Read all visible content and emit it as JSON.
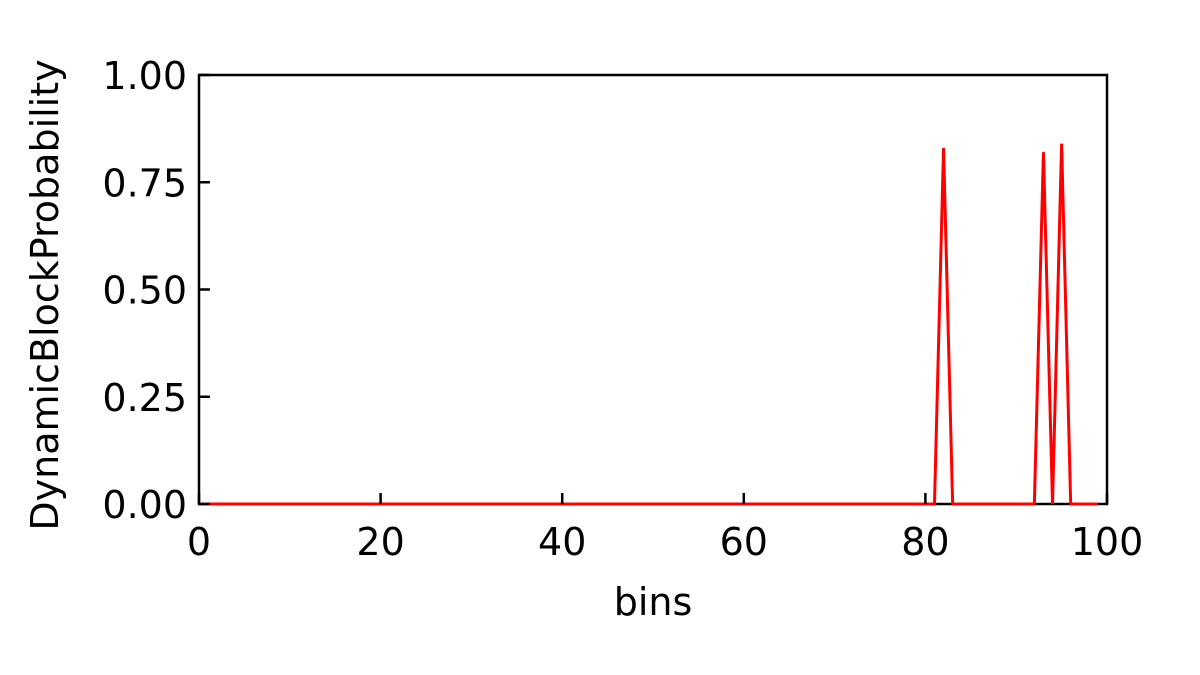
{
  "chart_data": {
    "type": "line",
    "title": "",
    "xlabel": "bins",
    "ylabel": "DynamicBlockProbability",
    "xlim": [
      0,
      100
    ],
    "ylim": [
      0,
      1.0
    ],
    "xticks": [
      0,
      20,
      40,
      60,
      80,
      100
    ],
    "xtick_labels": [
      "0",
      "20",
      "40",
      "60",
      "80",
      "100"
    ],
    "yticks": [
      0,
      0.25,
      0.5,
      0.75,
      1.0
    ],
    "ytick_labels": [
      "0.00",
      "0.25",
      "0.50",
      "0.75",
      "1.00"
    ],
    "grid": false,
    "legend": "none",
    "series": [
      {
        "color": "#ff0000",
        "x": [
          0,
          1,
          2,
          3,
          4,
          5,
          6,
          7,
          8,
          9,
          10,
          11,
          12,
          13,
          14,
          15,
          16,
          17,
          18,
          19,
          20,
          21,
          22,
          23,
          24,
          25,
          26,
          27,
          28,
          29,
          30,
          31,
          32,
          33,
          34,
          35,
          36,
          37,
          38,
          39,
          40,
          41,
          42,
          43,
          44,
          45,
          46,
          47,
          48,
          49,
          50,
          51,
          52,
          53,
          54,
          55,
          56,
          57,
          58,
          59,
          60,
          61,
          62,
          63,
          64,
          65,
          66,
          67,
          68,
          69,
          70,
          71,
          72,
          73,
          74,
          75,
          76,
          77,
          78,
          79,
          80,
          81,
          82,
          83,
          84,
          85,
          86,
          87,
          88,
          89,
          90,
          91,
          92,
          93,
          94,
          95,
          96,
          97,
          98,
          99
        ],
        "y": [
          0,
          0,
          0,
          0,
          0,
          0,
          0,
          0,
          0,
          0,
          0,
          0,
          0,
          0,
          0,
          0,
          0,
          0,
          0,
          0,
          0,
          0,
          0,
          0,
          0,
          0,
          0,
          0,
          0,
          0,
          0,
          0,
          0,
          0,
          0,
          0,
          0,
          0,
          0,
          0,
          0,
          0,
          0,
          0,
          0,
          0,
          0,
          0,
          0,
          0,
          0,
          0,
          0,
          0,
          0,
          0,
          0,
          0,
          0,
          0,
          0,
          0,
          0,
          0,
          0,
          0,
          0,
          0,
          0,
          0,
          0,
          0,
          0,
          0,
          0,
          0,
          0,
          0,
          0,
          0,
          0,
          0,
          0.83,
          0,
          0,
          0,
          0,
          0,
          0,
          0,
          0,
          0,
          0,
          0.82,
          0,
          0.84,
          0,
          0,
          0,
          0
        ]
      }
    ]
  }
}
